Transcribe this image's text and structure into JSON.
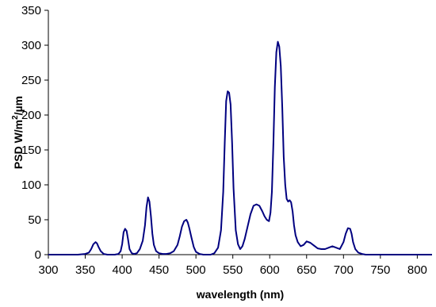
{
  "chart_data": {
    "type": "line",
    "title": "",
    "xlabel": "wavelength (nm)",
    "ylabel_main": "PSD W/m",
    "ylabel_sup": "2",
    "ylabel_tail": "/µm",
    "xlim": [
      300,
      820
    ],
    "ylim": [
      0,
      350
    ],
    "xticks": [
      "300",
      "350",
      "400",
      "450",
      "500",
      "550",
      "600",
      "650",
      "700",
      "750",
      "800"
    ],
    "yticks": [
      "0",
      "50",
      "100",
      "150",
      "200",
      "250",
      "300",
      "350"
    ],
    "grid": false,
    "legend": "none",
    "line_color": "#000080",
    "series": [
      {
        "x": [
          300,
          310,
          320,
          330,
          340,
          350,
          355,
          358,
          361,
          364,
          366,
          368,
          371,
          375,
          380,
          385,
          390,
          395,
          398,
          400,
          402,
          404,
          406,
          408,
          410,
          413,
          416,
          420,
          424,
          428,
          431,
          433,
          435,
          437,
          439,
          441,
          443,
          446,
          450,
          455,
          460,
          465,
          470,
          475,
          478,
          481,
          484,
          487,
          489,
          491,
          494,
          497,
          500,
          505,
          510,
          515,
          520,
          525,
          530,
          534,
          537,
          539,
          541,
          543,
          545,
          547,
          549,
          551,
          554,
          557,
          560,
          563,
          566,
          570,
          574,
          578,
          582,
          586,
          590,
          593,
          596,
          599,
          601,
          603,
          605,
          607,
          609,
          611,
          613,
          615,
          617,
          619,
          621,
          623,
          625,
          627,
          629,
          631,
          633,
          635,
          638,
          642,
          646,
          650,
          655,
          660,
          665,
          670,
          675,
          680,
          685,
          690,
          695,
          700,
          703,
          706,
          709,
          711,
          713,
          716,
          720,
          725,
          730,
          740,
          750,
          760,
          770,
          780,
          790,
          800,
          810,
          820
        ],
        "y": [
          0,
          0,
          0,
          0,
          0,
          1,
          3,
          8,
          15,
          18,
          16,
          11,
          5,
          1,
          0,
          0,
          0,
          1,
          5,
          15,
          32,
          37,
          34,
          22,
          8,
          2,
          1,
          2,
          8,
          20,
          42,
          68,
          82,
          76,
          55,
          30,
          14,
          5,
          2,
          1,
          1,
          2,
          5,
          14,
          26,
          40,
          48,
          50,
          46,
          38,
          24,
          11,
          4,
          1,
          0,
          0,
          0,
          2,
          10,
          35,
          90,
          160,
          220,
          234,
          232,
          215,
          160,
          95,
          35,
          15,
          8,
          12,
          22,
          40,
          58,
          70,
          72,
          70,
          62,
          55,
          50,
          48,
          60,
          90,
          160,
          240,
          290,
          305,
          298,
          270,
          210,
          140,
          100,
          80,
          76,
          78,
          75,
          62,
          42,
          28,
          18,
          12,
          14,
          19,
          17,
          13,
          9,
          8,
          8,
          10,
          12,
          10,
          8,
          18,
          30,
          38,
          37,
          30,
          18,
          8,
          3,
          1,
          0,
          0,
          0,
          0,
          0,
          0,
          0,
          0,
          0,
          0
        ]
      }
    ]
  }
}
